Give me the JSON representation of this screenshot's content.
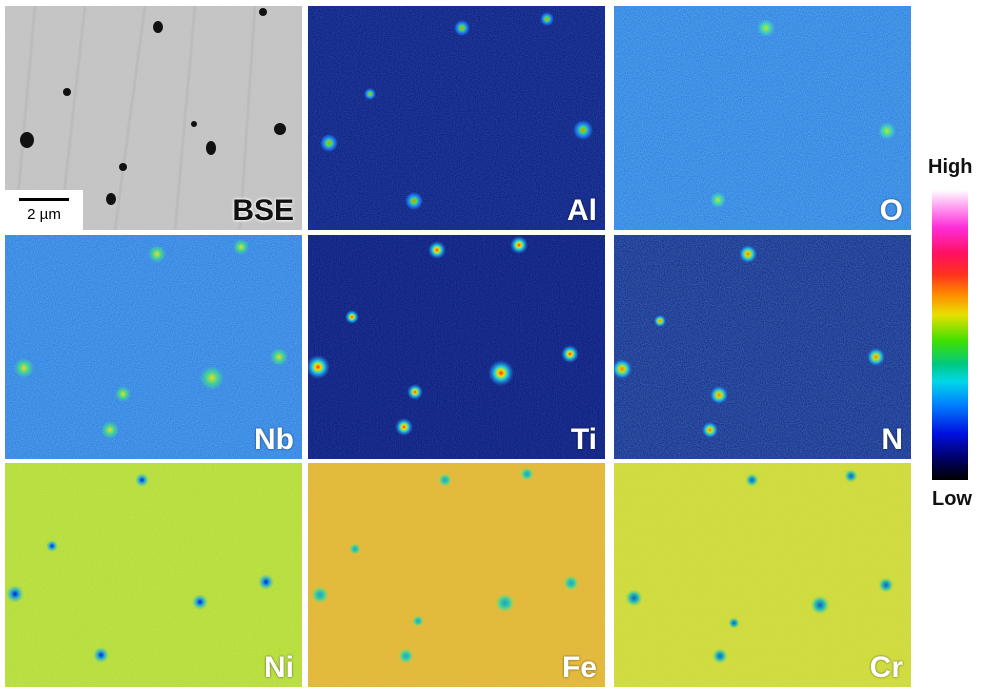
{
  "panels": [
    {
      "label": "BSE",
      "type": "bse"
    },
    {
      "label": "Al",
      "type": "sparse"
    },
    {
      "label": "O",
      "type": "medium"
    },
    {
      "label": "Nb",
      "type": "medium"
    },
    {
      "label": "Ti",
      "type": "sparse"
    },
    {
      "label": "N",
      "type": "dark"
    },
    {
      "label": "Ni",
      "type": "matrix"
    },
    {
      "label": "Fe",
      "type": "matrix-hot"
    },
    {
      "label": "Cr",
      "type": "matrix"
    }
  ],
  "scale_bar": {
    "label": "2 µm"
  },
  "colorbar": {
    "high": "High",
    "low": "Low"
  },
  "colors": {
    "sparse_bg": "#06126e",
    "medium_bg": "#2a6ce0",
    "dark_bg": "#0a1a7a",
    "matrix_bg": "#a6d83a",
    "matrix_hot_bg": "#d8c832",
    "bse_bg": "#c8c8c8"
  }
}
